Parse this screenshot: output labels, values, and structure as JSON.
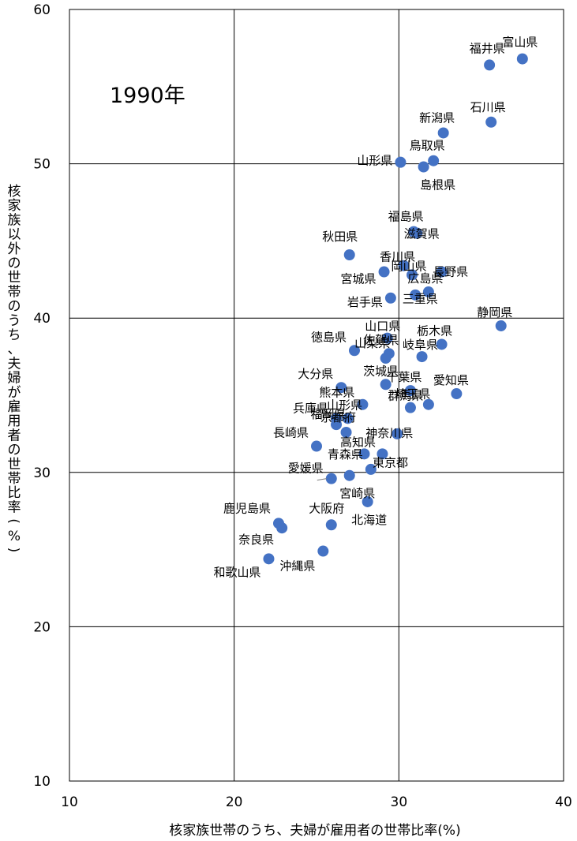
{
  "chart_data": {
    "type": "scatter",
    "annotation": "1990年",
    "xlabel": "核家族世帯のうち、夫婦が雇用者の世帯比率(%)",
    "ylabel": "核家族以外の世帯のうち、夫婦が雇用者の世帯比率(%)",
    "xlim": [
      10,
      40
    ],
    "ylim": [
      10,
      60
    ],
    "xticks": [
      "10",
      "20",
      "30",
      "40"
    ],
    "yticks": [
      "10",
      "20",
      "30",
      "40",
      "50",
      "60"
    ],
    "grid": true,
    "marker_color": "#4472C4",
    "points": [
      {
        "label": "富山県",
        "x": 37.5,
        "y": 56.8
      },
      {
        "label": "福井県",
        "x": 35.5,
        "y": 56.4
      },
      {
        "label": "石川県",
        "x": 35.6,
        "y": 52.7
      },
      {
        "label": "新潟県",
        "x": 32.7,
        "y": 52.0
      },
      {
        "label": "鳥取県",
        "x": 32.1,
        "y": 50.2
      },
      {
        "label": "山形県",
        "x": 30.1,
        "y": 50.1
      },
      {
        "label": "島根県",
        "x": 31.5,
        "y": 49.8
      },
      {
        "label": "福島県",
        "x": 30.9,
        "y": 45.6
      },
      {
        "label": "滋賀県",
        "x": 31.1,
        "y": 45.5
      },
      {
        "label": "秋田県",
        "x": 27.0,
        "y": 44.1
      },
      {
        "label": "香川県",
        "x": 30.3,
        "y": 43.4
      },
      {
        "label": "宮城県",
        "x": 29.1,
        "y": 43.0
      },
      {
        "label": "長野県",
        "x": 32.6,
        "y": 43.0
      },
      {
        "label": "岡山県",
        "x": 30.8,
        "y": 42.8
      },
      {
        "label": "広島県",
        "x": 31.8,
        "y": 41.7
      },
      {
        "label": "三重県",
        "x": 31.0,
        "y": 41.5
      },
      {
        "label": "岩手県",
        "x": 29.5,
        "y": 41.3
      },
      {
        "label": "静岡県",
        "x": 36.2,
        "y": 39.5
      },
      {
        "label": "山口県",
        "x": 29.3,
        "y": 38.7
      },
      {
        "label": "栃木県",
        "x": 32.6,
        "y": 38.3
      },
      {
        "label": "徳島県",
        "x": 27.3,
        "y": 37.9
      },
      {
        "label": "佐賀県",
        "x": 29.4,
        "y": 37.7
      },
      {
        "label": "岐阜県",
        "x": 31.4,
        "y": 37.5
      },
      {
        "label": "山梨県",
        "x": 29.2,
        "y": 37.4
      },
      {
        "label": "茨城県",
        "x": 29.2,
        "y": 35.7
      },
      {
        "label": "愛知県",
        "x": 33.5,
        "y": 35.1
      },
      {
        "label": "大分県",
        "x": 26.5,
        "y": 35.5
      },
      {
        "label": "千葉県",
        "x": 30.7,
        "y": 35.3
      },
      {
        "label": "熊本県",
        "x": 27.8,
        "y": 34.4
      },
      {
        "label": "群馬県",
        "x": 30.7,
        "y": 34.2
      },
      {
        "label": "埼玉県",
        "x": 31.8,
        "y": 34.4
      },
      {
        "label": "兵庫県",
        "x": 26.2,
        "y": 33.5
      },
      {
        "label": "山形県",
        "x": 26.9,
        "y": 33.5
      },
      {
        "label": "福岡県",
        "x": 26.2,
        "y": 33.1
      },
      {
        "label": "京都府",
        "x": 26.8,
        "y": 32.6
      },
      {
        "label": "神奈川県",
        "x": 29.9,
        "y": 32.5
      },
      {
        "label": "長崎県",
        "x": 25.0,
        "y": 31.7
      },
      {
        "label": "高知県",
        "x": 27.9,
        "y": 31.2
      },
      {
        "label": "東京都",
        "x": 29.0,
        "y": 31.2
      },
      {
        "label": "青森県",
        "x": 28.3,
        "y": 30.2
      },
      {
        "label": "愛媛県",
        "x": 25.9,
        "y": 29.6
      },
      {
        "label": "宮崎県",
        "x": 27.0,
        "y": 29.8
      },
      {
        "label": "北海道",
        "x": 28.1,
        "y": 28.1
      },
      {
        "label": "鹿児島県",
        "x": 22.7,
        "y": 26.7
      },
      {
        "label": "大阪府",
        "x": 25.9,
        "y": 26.6
      },
      {
        "label": "奈良県",
        "x": 22.9,
        "y": 26.4
      },
      {
        "label": "沖縄県",
        "x": 25.4,
        "y": 24.9
      },
      {
        "label": "和歌山県",
        "x": 22.1,
        "y": 24.4
      }
    ]
  }
}
